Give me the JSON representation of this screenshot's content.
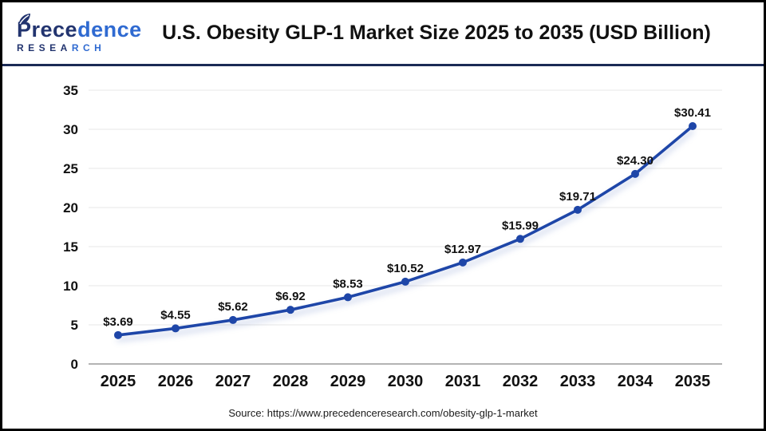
{
  "header": {
    "logo": {
      "name_part1": "Prece",
      "name_part2": "dence",
      "subtitle_part1": "RESEA",
      "subtitle_part2": "RCH",
      "navy": "#22346f",
      "blue": "#2f6ad1"
    },
    "title": "U.S. Obesity GLP-1 Market Size 2025 to 2035 (USD Billion)"
  },
  "chart_data": {
    "type": "line",
    "title": "U.S. Obesity GLP-1 Market Size 2025 to 2035 (USD Billion)",
    "categories": [
      "2025",
      "2026",
      "2027",
      "2028",
      "2029",
      "2030",
      "2031",
      "2032",
      "2033",
      "2034",
      "2035"
    ],
    "values": [
      3.69,
      4.55,
      5.62,
      6.92,
      8.53,
      10.52,
      12.97,
      15.99,
      19.71,
      24.3,
      30.41
    ],
    "point_labels": [
      "$3.69",
      "$4.55",
      "$5.62",
      "$6.92",
      "$8.53",
      "$10.52",
      "$12.97",
      "$15.99",
      "$19.71",
      "$24.30",
      "$30.41"
    ],
    "xlabel": "",
    "ylabel": "",
    "ylim": [
      0,
      35
    ],
    "yticks": [
      0,
      5,
      10,
      15,
      20,
      25,
      30,
      35
    ],
    "grid": true,
    "legend": "none",
    "line_color": "#1e46a8",
    "marker_color": "#1e46a8",
    "grid_color": "#ececec",
    "axis_color": "#b3b3b3",
    "label_color": "#111111"
  },
  "footer": {
    "source": "Source: https://www.precedenceresearch.com/obesity-glp-1-market"
  }
}
